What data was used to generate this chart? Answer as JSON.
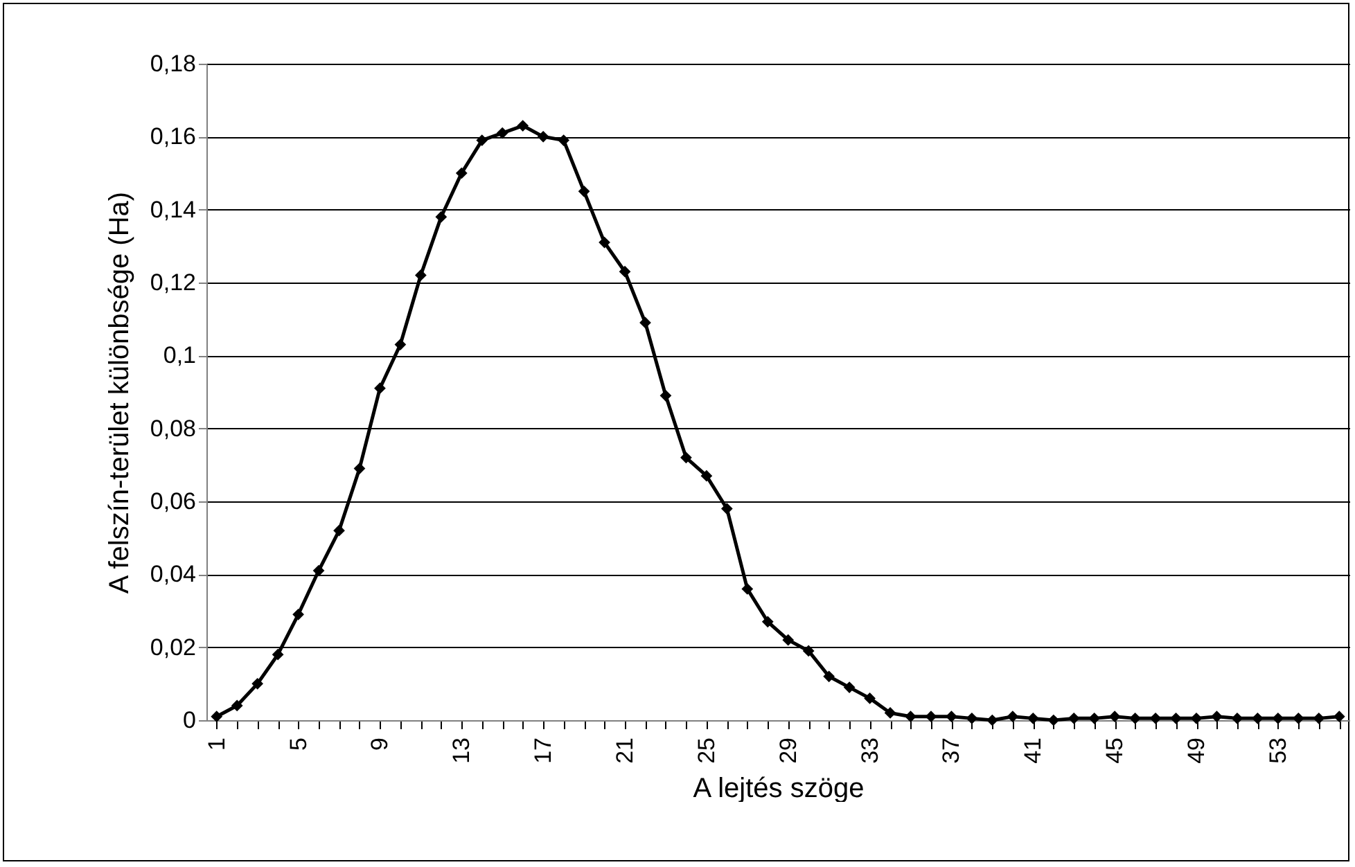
{
  "chart_data": {
    "type": "line",
    "xlabel": "A lejtés szöge",
    "ylabel": "A felszín-terület különbsége (Ha)",
    "categories": [
      "1",
      null,
      null,
      null,
      "5",
      null,
      null,
      null,
      "9",
      null,
      null,
      null,
      "13",
      null,
      null,
      null,
      "17",
      null,
      null,
      null,
      "21",
      null,
      null,
      null,
      "25",
      null,
      null,
      null,
      "29",
      null,
      null,
      null,
      "33",
      null,
      null,
      null,
      "37",
      null,
      null,
      null,
      "41",
      null,
      null,
      null,
      "45",
      null,
      null,
      null,
      "49",
      null,
      null,
      null,
      "53",
      null,
      null,
      null
    ],
    "series": [
      {
        "color": "#000000",
        "values": [
          0.001,
          0.004,
          0.01,
          0.018,
          0.029,
          0.041,
          0.052,
          0.069,
          0.091,
          0.103,
          0.122,
          0.138,
          0.15,
          0.159,
          0.161,
          0.163,
          0.16,
          0.159,
          0.145,
          0.131,
          0.123,
          0.109,
          0.089,
          0.072,
          0.067,
          0.058,
          0.036,
          0.027,
          0.022,
          0.019,
          0.012,
          0.009,
          0.006,
          0.002,
          0.001,
          0.001,
          0.001,
          0.0005,
          0,
          0.001,
          0.0005,
          0,
          0.0005,
          0.0005,
          0.001,
          0.0005,
          0.0005,
          0.0005,
          0.0005,
          0.001,
          0.0005,
          0.0005,
          0.0005,
          0.0005,
          0.0005,
          0.001
        ]
      }
    ],
    "ylim": [
      0,
      0.18
    ],
    "yticks": [
      0,
      {
        "value": 0.02,
        "label": "0,02"
      },
      {
        "value": 0.04,
        "label": "0,04"
      },
      {
        "value": 0.06,
        "label": "0,06"
      },
      {
        "value": 0.08,
        "label": "0,08"
      },
      {
        "value": 0.1,
        "label": "0,1"
      },
      {
        "value": 0.12,
        "label": "0,12"
      },
      {
        "value": 0.14,
        "label": "0,14"
      },
      {
        "value": 0.16,
        "label": "0,16"
      },
      {
        "value": 0.18,
        "label": "0,18"
      }
    ],
    "grid": "y",
    "marker": "diamond",
    "line_style": "solid"
  }
}
